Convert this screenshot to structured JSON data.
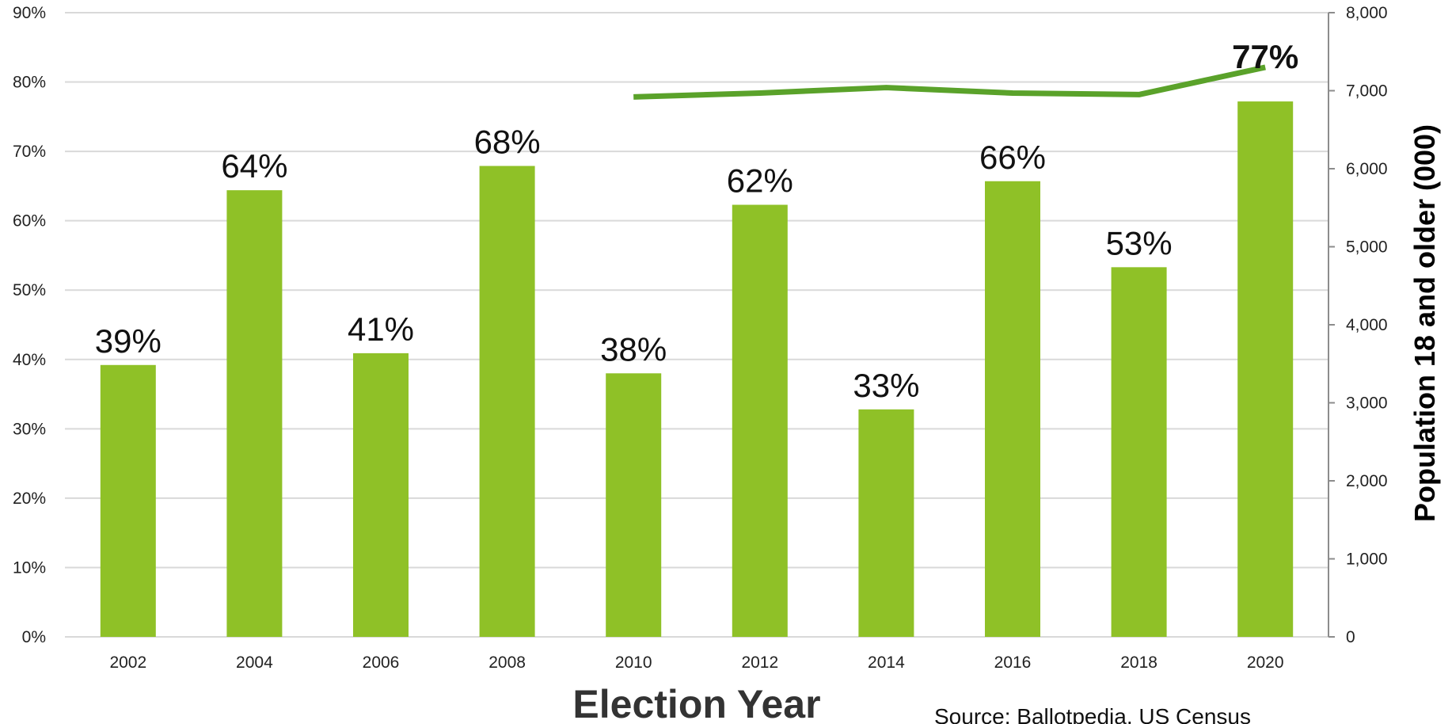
{
  "chart_data": {
    "type": "bar",
    "categories": [
      "2002",
      "2004",
      "2006",
      "2008",
      "2010",
      "2012",
      "2014",
      "2016",
      "2018",
      "2020"
    ],
    "bar_series": {
      "values": [
        39.2,
        64.4,
        40.9,
        67.9,
        38.0,
        62.3,
        32.8,
        65.7,
        53.3,
        77.2
      ],
      "labels": [
        "39%",
        "64%",
        "41%",
        "68%",
        "38%",
        "62%",
        "33%",
        "66%",
        "53%",
        "77%"
      ],
      "color": "#8fc127"
    },
    "line_series": {
      "x": [
        "2010",
        "2012",
        "2014",
        "2016",
        "2018",
        "2020"
      ],
      "values": [
        6920,
        6970,
        7040,
        6970,
        6950,
        7300
      ],
      "color": "#5aa22a"
    },
    "highlight_label_color": "#ff5a1f",
    "xlabel": "Election Year",
    "ylabel_right": "Population 18 and older (000)",
    "y_left": {
      "range": [
        0,
        90
      ],
      "ticks": [
        "0%",
        "10%",
        "20%",
        "30%",
        "40%",
        "50%",
        "60%",
        "70%",
        "80%",
        "90%"
      ]
    },
    "y_right": {
      "range": [
        0,
        8000
      ],
      "ticks": [
        "0",
        "1,000",
        "2,000",
        "3,000",
        "4,000",
        "5,000",
        "6,000",
        "7,000",
        "8,000"
      ]
    },
    "grid": true,
    "source": "Source: Ballotpedia, US Census"
  }
}
